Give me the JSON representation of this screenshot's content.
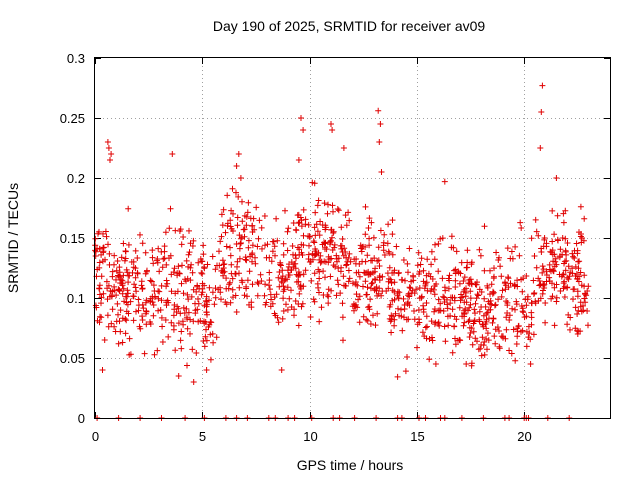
{
  "chart_data": {
    "type": "scatter",
    "title": "Day 190 of 2025, SRMTID for receiver av09",
    "xlabel": "GPS time / hours",
    "ylabel": "SRMTID / TECUs",
    "xlim": [
      0,
      24
    ],
    "ylim": [
      0,
      0.3
    ],
    "xticks": [
      0,
      5,
      10,
      15,
      20
    ],
    "xtick_labels": [
      "0",
      "5",
      "10",
      "15",
      "20"
    ],
    "yticks": [
      0,
      0.05,
      0.1,
      0.15,
      0.2,
      0.25,
      0.3
    ],
    "ytick_labels": [
      "0",
      "0.05",
      "0.1",
      "0.15",
      "0.2",
      "0.25",
      "0.3"
    ],
    "grid": true,
    "marker": "+",
    "color": "#e00000",
    "series": [
      {
        "name": "SRMTID",
        "profile_x": [
          0,
          0.5,
          1,
          2,
          3,
          4,
          5,
          5.5,
          6,
          7,
          8,
          9,
          10,
          11,
          12,
          13,
          14,
          14.5,
          15,
          16,
          17,
          18,
          19,
          20,
          21,
          22,
          23
        ],
        "profile_y": [
          0.12,
          0.13,
          0.11,
          0.11,
          0.11,
          0.11,
          0.1,
          0.09,
          0.13,
          0.14,
          0.12,
          0.12,
          0.14,
          0.14,
          0.12,
          0.12,
          0.11,
          0.09,
          0.11,
          0.1,
          0.1,
          0.1,
          0.09,
          0.1,
          0.13,
          0.12,
          0.11
        ],
        "point_count": 1400,
        "spread": 0.024,
        "highlights": [
          {
            "x": 0.6,
            "y": 0.23
          },
          {
            "x": 0.65,
            "y": 0.225
          },
          {
            "x": 0.7,
            "y": 0.215
          },
          {
            "x": 0.75,
            "y": 0.22
          },
          {
            "x": 3.6,
            "y": 0.22
          },
          {
            "x": 6.7,
            "y": 0.22
          },
          {
            "x": 6.6,
            "y": 0.21
          },
          {
            "x": 6.8,
            "y": 0.2
          },
          {
            "x": 9.6,
            "y": 0.25
          },
          {
            "x": 9.7,
            "y": 0.24
          },
          {
            "x": 9.5,
            "y": 0.215
          },
          {
            "x": 11.0,
            "y": 0.245
          },
          {
            "x": 11.05,
            "y": 0.24
          },
          {
            "x": 11.6,
            "y": 0.225
          },
          {
            "x": 13.2,
            "y": 0.256
          },
          {
            "x": 13.3,
            "y": 0.245
          },
          {
            "x": 13.25,
            "y": 0.23
          },
          {
            "x": 13.35,
            "y": 0.205
          },
          {
            "x": 16.3,
            "y": 0.197
          },
          {
            "x": 20.85,
            "y": 0.277
          },
          {
            "x": 20.8,
            "y": 0.255
          },
          {
            "x": 20.75,
            "y": 0.225
          },
          {
            "x": 21.5,
            "y": 0.2
          },
          {
            "x": 4.6,
            "y": 0.03
          },
          {
            "x": 8.7,
            "y": 0.04
          },
          {
            "x": 5.2,
            "y": 0.04
          },
          {
            "x": 3.9,
            "y": 0.035
          },
          {
            "x": 0.35,
            "y": 0.04
          },
          {
            "x": 20.3,
            "y": 0.045
          },
          {
            "x": 17.3,
            "y": 0.045
          },
          {
            "x": 22.5,
            "y": 0.07
          }
        ],
        "zero_x": [
          0.1,
          1.1,
          2.1,
          3.1,
          4.2,
          5.1,
          6.1,
          6.6,
          7.1,
          8.1,
          8.4,
          9.0,
          9.3,
          10.1,
          11.1,
          11.4,
          12.1,
          13.1,
          14.1,
          14.3,
          15.1,
          15.4,
          16.1,
          16.3,
          17.1,
          18.1,
          19.1,
          19.3,
          20.0,
          20.1,
          20.2,
          21.1,
          22.1
        ]
      }
    ]
  }
}
